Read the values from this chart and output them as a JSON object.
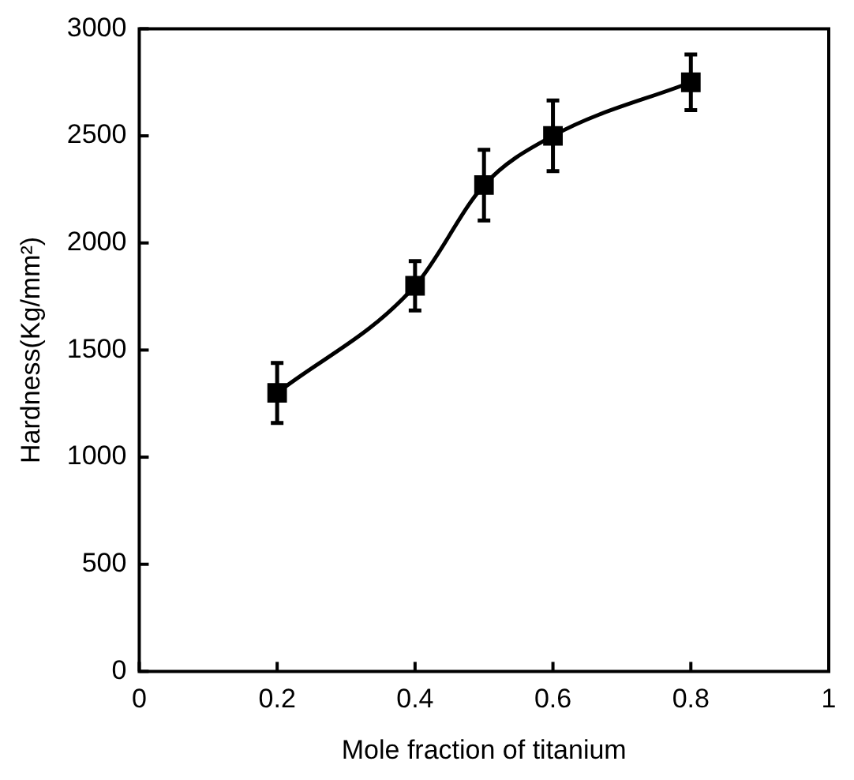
{
  "chart_data": {
    "type": "line",
    "xlabel": "Mole fraction of titanium",
    "ylabel": "Hardness(Kg/mm²)",
    "x": [
      0.2,
      0.4,
      0.5,
      0.6,
      0.8
    ],
    "series": [
      {
        "color": "#000000",
        "values": [
          1300,
          1800,
          2270,
          2500,
          2750
        ],
        "errors": [
          140,
          115,
          165,
          165,
          130
        ]
      }
    ],
    "xlim": [
      0,
      1
    ],
    "xticks": [
      0,
      0.2,
      0.4,
      0.6,
      0.8,
      1
    ],
    "ylim": [
      0,
      3000
    ],
    "yticks": [
      0,
      500,
      1000,
      1500,
      2000,
      2500,
      3000
    ],
    "grid": false,
    "legend": false,
    "marker": "square",
    "line_style": "solid"
  }
}
